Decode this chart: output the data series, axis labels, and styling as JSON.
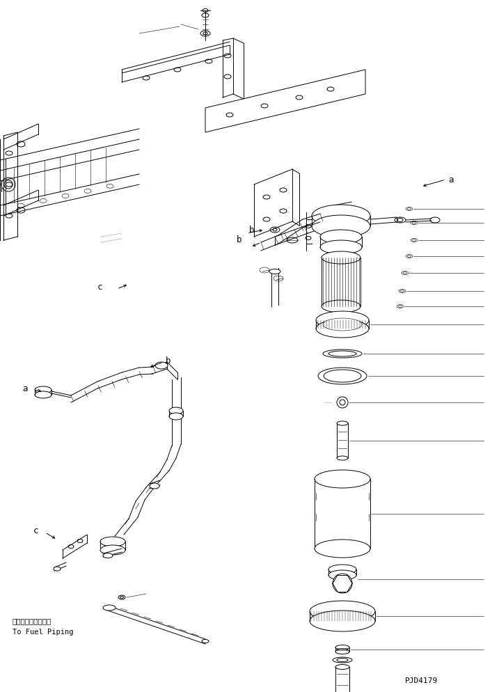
{
  "background_color": "#ffffff",
  "line_color": "#000000",
  "figsize": [
    7.17,
    9.94
  ],
  "dpi": 100,
  "text_fuel_jp": "フェルパイピングへ",
  "text_fuel_en": "To Fuel Piping",
  "part_number": "PJD4179",
  "lw": 0.7,
  "lw_thin": 0.4,
  "lw_thick": 1.0
}
